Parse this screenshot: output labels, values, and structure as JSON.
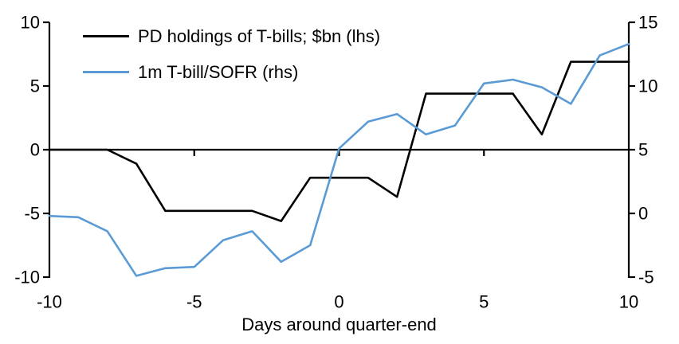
{
  "chart_data": {
    "type": "line",
    "title": "",
    "xlabel": "Days around quarter-end",
    "grid": false,
    "background": "#FFFFFF",
    "legend_position": "top-left",
    "xlim": [
      -10,
      10
    ],
    "x": [
      -10,
      -9,
      -8,
      -7,
      -6,
      -5,
      -4,
      -3,
      -2,
      -1,
      0,
      1,
      2,
      3,
      4,
      5,
      6,
      7,
      8,
      9,
      10
    ],
    "x_ticks": [
      -10,
      -5,
      0,
      5,
      10
    ],
    "x_axis_interior_ticks": [
      -5,
      0,
      5
    ],
    "left_axis": {
      "ylim": [
        -10,
        10
      ],
      "ticks": [
        10,
        5,
        0,
        -5,
        -10
      ]
    },
    "right_axis": {
      "ylim": [
        -5,
        15
      ],
      "ticks": [
        15,
        10,
        5,
        0,
        -5
      ]
    },
    "series": [
      {
        "name": "PD holdings of T-bills; $bn (lhs)",
        "axis": "left",
        "color": "#000000",
        "values": [
          0,
          0,
          0,
          -1.1,
          -4.8,
          -4.8,
          -4.8,
          -4.8,
          -5.6,
          -2.2,
          -2.2,
          -2.2,
          -3.7,
          4.4,
          4.4,
          4.4,
          4.4,
          1.2,
          6.9,
          6.9,
          6.9
        ]
      },
      {
        "name": "1m T-bill/SOFR (rhs)",
        "axis": "right",
        "color": "#5B9BD5",
        "values": [
          -0.2,
          -0.3,
          -1.4,
          -4.9,
          -4.3,
          -4.2,
          -2.1,
          -1.4,
          -3.8,
          -2.5,
          5.1,
          7.2,
          7.8,
          6.2,
          6.9,
          10.2,
          10.5,
          9.9,
          8.6,
          12.4,
          13.3
        ]
      }
    ]
  }
}
